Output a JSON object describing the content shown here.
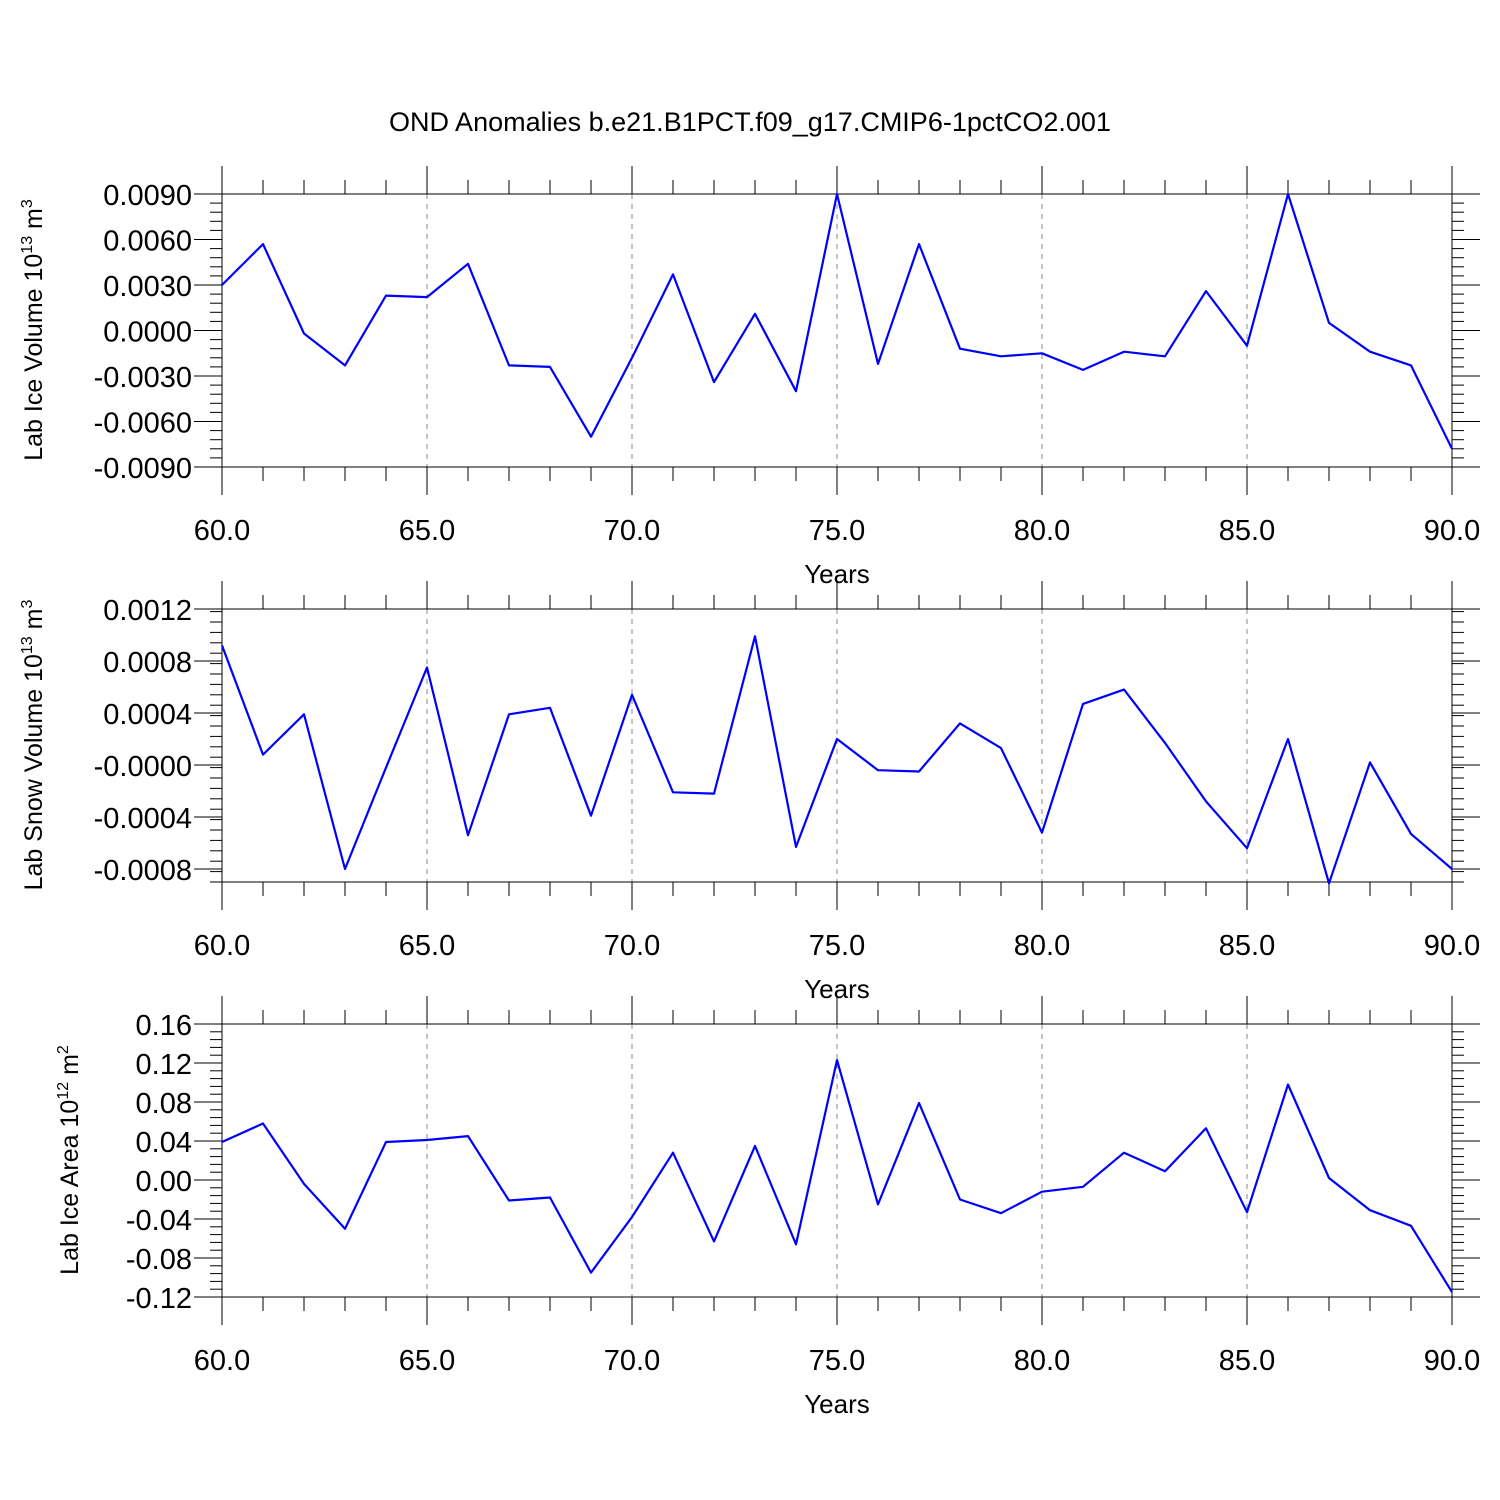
{
  "title": "OND Anomalies b.e21.B1PCT.f09_g17.CMIP6-1pctCO2.001",
  "colors": {
    "line": "#0000ff",
    "grid": "#888888",
    "axis": "#000000"
  },
  "chart_data": [
    {
      "type": "line",
      "ylabel_main": "Lab Ice Volume 10",
      "ylabel_exp": "13",
      "ylabel_unit": " m",
      "ylabel_unit_exp": "3",
      "xlabel": "Years",
      "xlim": [
        60,
        90
      ],
      "ylim": [
        -0.009,
        0.009
      ],
      "grid": "x-dashed",
      "xticks": [
        "60.0",
        "65.0",
        "70.0",
        "75.0",
        "80.0",
        "85.0",
        "90.0"
      ],
      "xtick_values": [
        60,
        65,
        70,
        75,
        80,
        85,
        90
      ],
      "yticks": [
        "0.0090",
        "0.0060",
        "0.0030",
        "0.0000",
        "-0.0030",
        "-0.0060",
        "-0.0090"
      ],
      "ytick_values": [
        0.009,
        0.006,
        0.003,
        0.0,
        -0.003,
        -0.006,
        -0.009
      ],
      "x": [
        60,
        61,
        62,
        63,
        64,
        65,
        66,
        67,
        68,
        69,
        70,
        71,
        72,
        73,
        74,
        75,
        76,
        77,
        78,
        79,
        80,
        81,
        82,
        83,
        84,
        85,
        86,
        87,
        88,
        89,
        90
      ],
      "values": [
        0.003,
        0.0057,
        -0.0002,
        -0.0023,
        0.0023,
        0.0022,
        0.0044,
        -0.0023,
        -0.0024,
        -0.007,
        -0.0018,
        0.0037,
        -0.0034,
        0.0011,
        -0.004,
        0.009,
        -0.0022,
        0.0057,
        -0.0012,
        -0.0017,
        -0.0015,
        -0.0026,
        -0.0014,
        -0.0017,
        0.0026,
        -0.001,
        0.009,
        0.0005,
        -0.0014,
        -0.0023,
        -0.0078
      ]
    },
    {
      "type": "line",
      "ylabel_main": "Lab Snow Volume 10",
      "ylabel_exp": "13",
      "ylabel_unit": " m",
      "ylabel_unit_exp": "3",
      "xlabel": "Years",
      "xlim": [
        60,
        90
      ],
      "ylim": [
        -0.0009,
        0.0012
      ],
      "grid": "x-dashed",
      "xticks": [
        "60.0",
        "65.0",
        "70.0",
        "75.0",
        "80.0",
        "85.0",
        "90.0"
      ],
      "xtick_values": [
        60,
        65,
        70,
        75,
        80,
        85,
        90
      ],
      "yticks": [
        "0.0012",
        "0.0008",
        "0.0004",
        "-0.0000",
        "-0.0004",
        "-0.0008"
      ],
      "ytick_values": [
        0.0012,
        0.0008,
        0.0004,
        0.0,
        -0.0004,
        -0.0008
      ],
      "x": [
        60,
        61,
        62,
        63,
        64,
        65,
        66,
        67,
        68,
        69,
        70,
        71,
        72,
        73,
        74,
        75,
        76,
        77,
        78,
        79,
        80,
        81,
        82,
        83,
        84,
        85,
        86,
        87,
        88,
        89,
        90
      ],
      "values": [
        0.00092,
        8e-05,
        0.00039,
        -0.0008,
        -2e-05,
        0.00075,
        -0.00054,
        0.00039,
        0.00044,
        -0.00039,
        0.00054,
        -0.00021,
        -0.00022,
        0.00099,
        -0.00063,
        0.0002,
        -4e-05,
        -5e-05,
        0.00032,
        0.00013,
        -0.00052,
        0.00047,
        0.00058,
        0.00017,
        -0.00028,
        -0.00064,
        0.0002,
        -0.00091,
        2e-05,
        -0.00053,
        -0.0008
      ]
    },
    {
      "type": "line",
      "ylabel_main": "Lab Ice Area 10",
      "ylabel_exp": "12",
      "ylabel_unit": " m",
      "ylabel_unit_exp": "2",
      "xlabel": "Years",
      "xlim": [
        60,
        90
      ],
      "ylim": [
        -0.12,
        0.16
      ],
      "grid": "x-dashed",
      "xticks": [
        "60.0",
        "65.0",
        "70.0",
        "75.0",
        "80.0",
        "85.0",
        "90.0"
      ],
      "xtick_values": [
        60,
        65,
        70,
        75,
        80,
        85,
        90
      ],
      "yticks": [
        "0.16",
        "0.12",
        "0.08",
        "0.04",
        "0.00",
        "-0.04",
        "-0.08",
        "-0.12"
      ],
      "ytick_values": [
        0.16,
        0.12,
        0.08,
        0.04,
        0.0,
        -0.04,
        -0.08,
        -0.12
      ],
      "x": [
        60,
        61,
        62,
        63,
        64,
        65,
        66,
        67,
        68,
        69,
        70,
        71,
        72,
        73,
        74,
        75,
        76,
        77,
        78,
        79,
        80,
        81,
        82,
        83,
        84,
        85,
        86,
        87,
        88,
        89,
        90
      ],
      "values": [
        0.039,
        0.058,
        -0.004,
        -0.05,
        0.039,
        0.041,
        0.045,
        -0.021,
        -0.018,
        -0.095,
        -0.038,
        0.028,
        -0.063,
        0.035,
        -0.066,
        0.123,
        -0.025,
        0.079,
        -0.02,
        -0.034,
        -0.012,
        -0.007,
        0.028,
        0.009,
        0.053,
        -0.033,
        0.098,
        0.002,
        -0.031,
        -0.047,
        -0.115
      ]
    }
  ]
}
